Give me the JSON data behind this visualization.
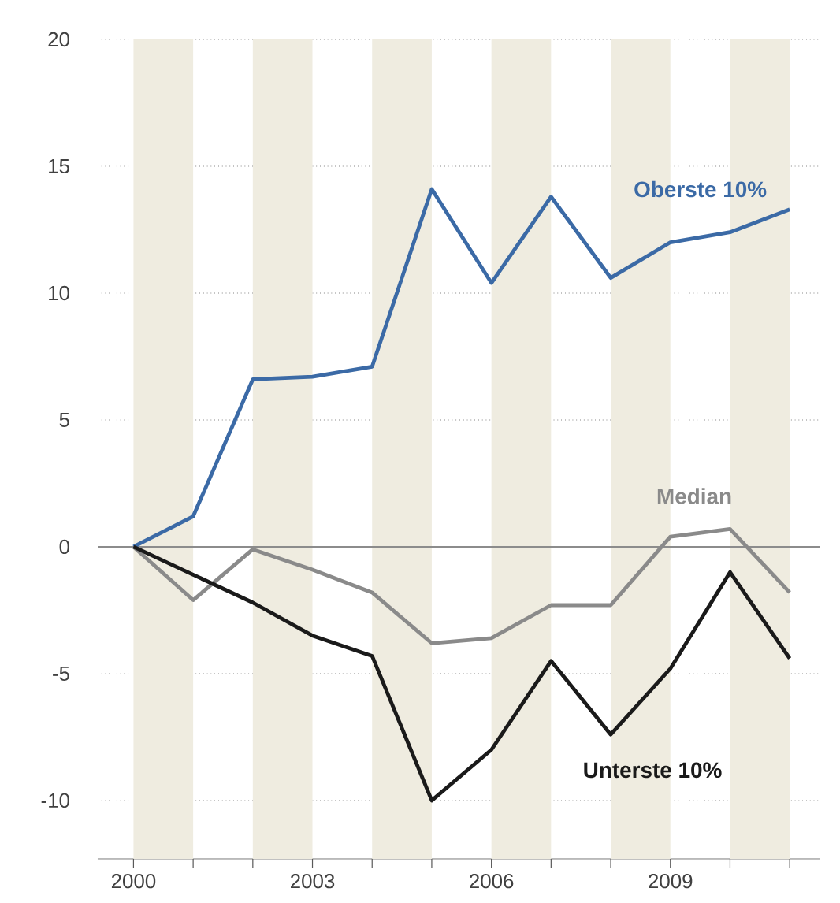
{
  "chart_data": {
    "type": "line",
    "x": [
      2000,
      2001,
      2002,
      2003,
      2004,
      2005,
      2006,
      2007,
      2008,
      2009,
      2010,
      2011
    ],
    "series": [
      {
        "name": "Oberste 10%",
        "color": "#3b6aa6",
        "values": [
          0,
          1.2,
          6.6,
          6.7,
          7.1,
          14.1,
          10.4,
          13.8,
          10.6,
          12.0,
          12.4,
          13.3
        ]
      },
      {
        "name": "Median",
        "color": "#8a8a8a",
        "values": [
          0,
          -2.1,
          -0.1,
          -0.9,
          -1.8,
          -3.8,
          -3.6,
          -2.3,
          -2.3,
          0.4,
          0.7,
          -1.8
        ]
      },
      {
        "name": "Unterste 10%",
        "color": "#1a1a1a",
        "values": [
          0,
          -1.1,
          -2.2,
          -3.5,
          -4.3,
          -10.0,
          -8.0,
          -4.5,
          -7.4,
          -4.8,
          -1.0,
          -4.4
        ]
      }
    ],
    "xlim": [
      1999.4,
      2011.5
    ],
    "ylim": [
      -12.3,
      20
    ],
    "xticks": [
      2000,
      {
        "value": 2001,
        "label": null
      },
      {
        "value": 2002,
        "label": null
      },
      2003,
      {
        "value": 2004,
        "label": null
      },
      {
        "value": 2005,
        "label": null
      },
      2006,
      {
        "value": 2007,
        "label": null
      },
      {
        "value": 2008,
        "label": null
      },
      2009,
      {
        "value": 2010,
        "label": null
      },
      {
        "value": 2011,
        "label": null
      }
    ],
    "yticks": [
      -10,
      -5,
      0,
      5,
      10,
      15,
      20
    ],
    "grid": "y",
    "marker": "none",
    "line_style": "solid",
    "ref_lines": [
      {
        "axis": "y",
        "value": 0,
        "color": "#8c8c8c"
      }
    ],
    "bands": [
      {
        "axis": "x",
        "from": 2000,
        "to": 2001,
        "color": "#efece0"
      },
      {
        "axis": "x",
        "from": 2002,
        "to": 2003,
        "color": "#efece0"
      },
      {
        "axis": "x",
        "from": 2004,
        "to": 2005,
        "color": "#efece0"
      },
      {
        "axis": "x",
        "from": 2006,
        "to": 2007,
        "color": "#efece0"
      },
      {
        "axis": "x",
        "from": 2008,
        "to": 2009,
        "color": "#efece0"
      },
      {
        "axis": "x",
        "from": 2010,
        "to": 2011,
        "color": "#efece0"
      }
    ]
  }
}
